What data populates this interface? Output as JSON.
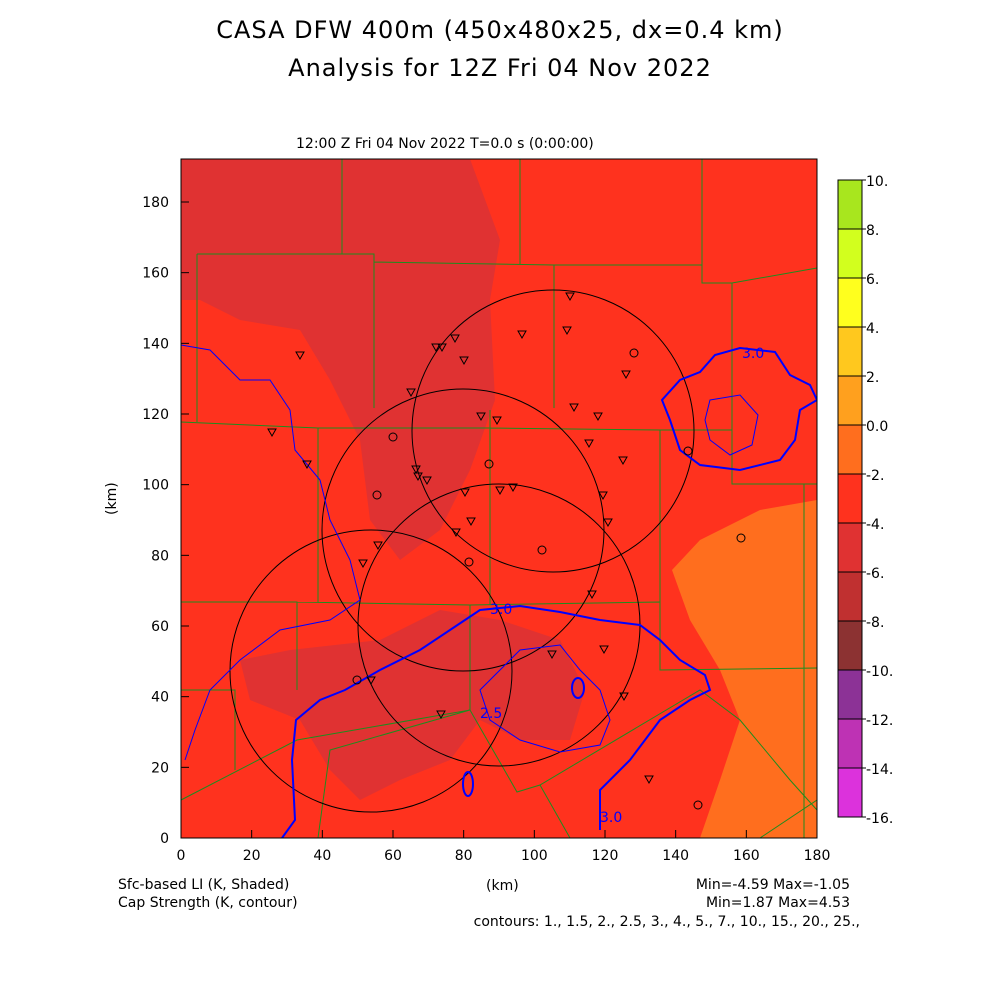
{
  "title_line1": "CASA DFW 400m (450x480x25, dx=0.4 km)",
  "title_line2": "Analysis for 12Z Fri 04 Nov 2022",
  "subtitle": "12:00 Z Fri 04 Nov 2022    T=0.0 s (0:00:00)",
  "x_axis": {
    "label": "(km)",
    "ticks": [
      "0",
      "20",
      "40",
      "60",
      "80",
      "100",
      "120",
      "140",
      "160",
      "180"
    ],
    "range": [
      0,
      180
    ]
  },
  "y_axis": {
    "label": "(km)",
    "ticks": [
      "0",
      "20",
      "40",
      "60",
      "80",
      "100",
      "120",
      "140",
      "160",
      "180"
    ],
    "range": [
      0,
      192
    ]
  },
  "colorbar": {
    "labels": [
      "10.",
      "8.",
      "6.",
      "4.",
      "2.",
      "0.0",
      "-2.",
      "-4.",
      "-6.",
      "-8.",
      "-10.",
      "-12.",
      "-14.",
      "-16."
    ],
    "colors": [
      "#a8e61e",
      "#d2ff1e",
      "#ffff1e",
      "#ffc81e",
      "#ffa01e",
      "#ff6e1e",
      "#ff321e",
      "#e03232",
      "#c03030",
      "#8c3232",
      "#8c3296",
      "#be32b4",
      "#dc32dc"
    ]
  },
  "footer": {
    "left1": "Sfc-based LI (K, Shaded)",
    "left2": "Cap Strength (K, contour)",
    "right1": "Min=-4.59 Max=-1.05",
    "right2": "Min=1.87 Max=4.53",
    "contours": "contours: 1., 1.5, 2., 2.5, 3., 4., 5., 7., 10., 15., 20., 25.,"
  },
  "contour_labels": [
    "3.0",
    "3.0",
    "2.5",
    "3.0"
  ],
  "colors": {
    "base": "#ff321e",
    "dark": "#e03232",
    "orange": "#ff6e1e",
    "county": "#1e8c1e",
    "contour": "#0000ff"
  }
}
